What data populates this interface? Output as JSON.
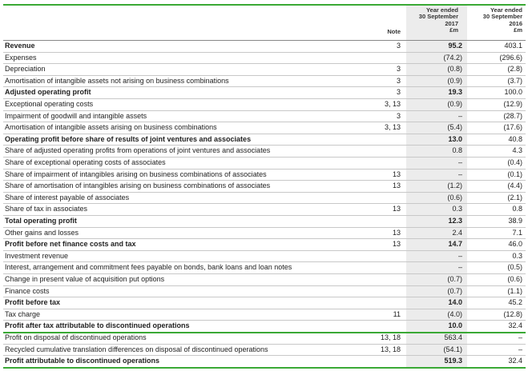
{
  "header": {
    "note": "Note",
    "col1": [
      "Year ended",
      "30 September",
      "2017",
      "£m"
    ],
    "col2": [
      "Year ended",
      "30 September",
      "2016",
      "£m"
    ]
  },
  "table": {
    "rows": [
      {
        "label": "Revenue",
        "note": "3",
        "cy": "95.2",
        "py": "403.1",
        "bold": true
      },
      {
        "label": "Expenses",
        "cy": "(74.2)",
        "py": "(296.6)"
      },
      {
        "label": "Depreciation",
        "note": "3",
        "cy": "(0.8)",
        "py": "(2.8)"
      },
      {
        "label": "Amortisation of intangible assets not arising on business combinations",
        "note": "3",
        "cy": "(0.9)",
        "py": "(3.7)"
      },
      {
        "label": "Adjusted operating profit",
        "note": "3",
        "cy": "19.3",
        "py": "100.0",
        "bold": true
      },
      {
        "label": "Exceptional operating costs",
        "note": "3, 13",
        "cy": "(0.9)",
        "py": "(12.9)"
      },
      {
        "label": "Impairment of goodwill and intangible assets",
        "note": "3",
        "cy": "–",
        "py": "(28.7)"
      },
      {
        "label": "Amortisation of intangible assets arising on business combinations",
        "note": "3, 13",
        "cy": "(5.4)",
        "py": "(17.6)"
      },
      {
        "label": "Operating profit before share of results of joint ventures and associates",
        "cy": "13.0",
        "py": "40.8",
        "bold": true
      },
      {
        "label": "Share of adjusted operating profits from operations of joint ventures and associates",
        "cy": "0.8",
        "py": "4.3"
      },
      {
        "label": "Share of exceptional operating costs of associates",
        "cy": "–",
        "py": "(0.4)"
      },
      {
        "label": "Share of impairment of intangibles arising on business combinations of associates",
        "note": "13",
        "cy": "–",
        "py": "(0.1)"
      },
      {
        "label": "Share of amortisation of intangibles arising on business combinations of associates",
        "note": "13",
        "cy": "(1.2)",
        "py": "(4.4)"
      },
      {
        "label": "Share of interest payable of associates",
        "cy": "(0.6)",
        "py": "(2.1)"
      },
      {
        "label": "Share of tax in associates",
        "note": "13",
        "cy": "0.3",
        "py": "0.8"
      },
      {
        "label": "Total operating profit",
        "cy": "12.3",
        "py": "38.9",
        "bold": true
      },
      {
        "label": "Other gains and losses",
        "note": "13",
        "cy": "2.4",
        "py": "7.1"
      },
      {
        "label": "Profit before net finance costs and tax",
        "note": "13",
        "cy": "14.7",
        "py": "46.0",
        "bold": true
      },
      {
        "label": "Investment revenue",
        "cy": "–",
        "py": "0.3"
      },
      {
        "label": "Interest, arrangement and commitment fees payable on bonds, bank loans and loan notes",
        "cy": "–",
        "py": "(0.5)"
      },
      {
        "label": "Change in present value of acquisition put options",
        "cy": "(0.7)",
        "py": "(0.6)"
      },
      {
        "label": "Finance costs",
        "cy": "(0.7)",
        "py": "(1.1)"
      },
      {
        "label": "Profit before tax",
        "cy": "14.0",
        "py": "45.2",
        "bold": true
      },
      {
        "label": "Tax charge",
        "note": "11",
        "cy": "(4.0)",
        "py": "(12.8)"
      },
      {
        "label": "Profit after tax attributable to discontinued operations",
        "cy": "10.0",
        "py": "32.4",
        "bold": true,
        "rule": true
      },
      {
        "label": "Profit on disposal of discontinued operations",
        "note": "13, 18",
        "cy": "563.4",
        "py": "–"
      },
      {
        "label": "Recycled cumulative translation differences on disposal of discontinued operations",
        "note": "13, 18",
        "cy": "(54.1)",
        "py": "–"
      },
      {
        "label": "Profit attributable to discontinued operations",
        "cy": "519.3",
        "py": "32.4",
        "bold": true,
        "rule": true
      }
    ]
  }
}
